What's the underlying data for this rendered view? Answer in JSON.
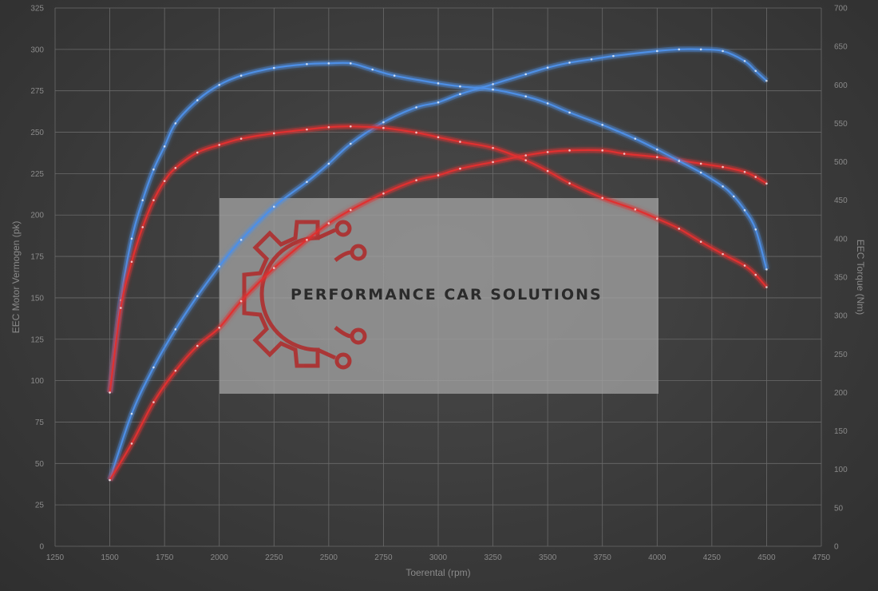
{
  "chart_data": {
    "type": "line",
    "xlabel": "Toerental (rpm)",
    "ylabel_left": "EEC Motor Vermogen (pk)",
    "ylabel_right": "EEC Torque (Nm)",
    "xlim": [
      1250,
      4750
    ],
    "ylim_left": [
      0,
      325
    ],
    "ylim_right": [
      0,
      700
    ],
    "x_ticks": [
      1250,
      1500,
      1750,
      2000,
      2250,
      2500,
      2750,
      3000,
      3250,
      3500,
      3750,
      4000,
      4250,
      4500,
      4750
    ],
    "y_ticks_left": [
      0,
      25,
      50,
      75,
      100,
      125,
      150,
      175,
      200,
      225,
      250,
      275,
      300,
      325
    ],
    "y_ticks_right": [
      0,
      50,
      100,
      150,
      200,
      250,
      300,
      350,
      400,
      450,
      500,
      550,
      600,
      650,
      700
    ],
    "grid": true,
    "series": [
      {
        "color": "#4d8fe6",
        "axis": "left",
        "points": [
          [
            1500,
            40
          ],
          [
            1600,
            80
          ],
          [
            1700,
            108
          ],
          [
            1800,
            131
          ],
          [
            1900,
            151
          ],
          [
            2000,
            169
          ],
          [
            2100,
            185
          ],
          [
            2250,
            205
          ],
          [
            2400,
            220
          ],
          [
            2500,
            231
          ],
          [
            2600,
            243
          ],
          [
            2750,
            256
          ],
          [
            2900,
            265
          ],
          [
            3000,
            268
          ],
          [
            3100,
            273
          ],
          [
            3250,
            279
          ],
          [
            3400,
            285
          ],
          [
            3500,
            289
          ],
          [
            3600,
            292
          ],
          [
            3700,
            294
          ],
          [
            3800,
            296
          ],
          [
            4000,
            299
          ],
          [
            4100,
            300
          ],
          [
            4200,
            300
          ],
          [
            4300,
            299
          ],
          [
            4400,
            293
          ],
          [
            4450,
            287
          ],
          [
            4500,
            281
          ]
        ]
      },
      {
        "color": "#e03030",
        "axis": "left",
        "points": [
          [
            1500,
            40
          ],
          [
            1600,
            62
          ],
          [
            1700,
            87
          ],
          [
            1800,
            106
          ],
          [
            1900,
            121
          ],
          [
            2000,
            132
          ],
          [
            2100,
            148
          ],
          [
            2250,
            168
          ],
          [
            2400,
            185
          ],
          [
            2500,
            195
          ],
          [
            2600,
            203
          ],
          [
            2750,
            213
          ],
          [
            2900,
            221
          ],
          [
            3000,
            224
          ],
          [
            3100,
            228
          ],
          [
            3250,
            232
          ],
          [
            3400,
            236
          ],
          [
            3500,
            238
          ],
          [
            3600,
            239
          ],
          [
            3750,
            239
          ],
          [
            3850,
            237
          ],
          [
            4000,
            235
          ],
          [
            4100,
            233
          ],
          [
            4200,
            231
          ],
          [
            4300,
            229
          ],
          [
            4400,
            226
          ],
          [
            4450,
            223
          ],
          [
            4500,
            219
          ]
        ]
      },
      {
        "color": "#4d8fe6",
        "axis": "right",
        "points": [
          [
            1500,
            200
          ],
          [
            1550,
            320
          ],
          [
            1600,
            400
          ],
          [
            1650,
            450
          ],
          [
            1700,
            490
          ],
          [
            1750,
            520
          ],
          [
            1800,
            550
          ],
          [
            1900,
            580
          ],
          [
            2000,
            600
          ],
          [
            2100,
            612
          ],
          [
            2250,
            622
          ],
          [
            2400,
            627
          ],
          [
            2500,
            628
          ],
          [
            2600,
            628
          ],
          [
            2700,
            620
          ],
          [
            2800,
            612
          ],
          [
            3000,
            602
          ],
          [
            3100,
            598
          ],
          [
            3250,
            594
          ],
          [
            3400,
            585
          ],
          [
            3500,
            576
          ],
          [
            3600,
            564
          ],
          [
            3750,
            548
          ],
          [
            3900,
            530
          ],
          [
            4000,
            516
          ],
          [
            4100,
            501
          ],
          [
            4200,
            486
          ],
          [
            4300,
            468
          ],
          [
            4350,
            455
          ],
          [
            4400,
            437
          ],
          [
            4450,
            412
          ],
          [
            4500,
            360
          ]
        ]
      },
      {
        "color": "#e03030",
        "axis": "right",
        "points": [
          [
            1500,
            200
          ],
          [
            1550,
            310
          ],
          [
            1600,
            370
          ],
          [
            1650,
            415
          ],
          [
            1700,
            450
          ],
          [
            1750,
            475
          ],
          [
            1800,
            492
          ],
          [
            1900,
            512
          ],
          [
            2000,
            522
          ],
          [
            2100,
            530
          ],
          [
            2250,
            537
          ],
          [
            2400,
            542
          ],
          [
            2500,
            545
          ],
          [
            2600,
            546
          ],
          [
            2750,
            544
          ],
          [
            2900,
            538
          ],
          [
            3000,
            532
          ],
          [
            3100,
            526
          ],
          [
            3250,
            518
          ],
          [
            3400,
            502
          ],
          [
            3500,
            488
          ],
          [
            3600,
            472
          ],
          [
            3750,
            453
          ],
          [
            3900,
            438
          ],
          [
            4000,
            426
          ],
          [
            4100,
            413
          ],
          [
            4200,
            396
          ],
          [
            4300,
            380
          ],
          [
            4400,
            365
          ],
          [
            4450,
            353
          ],
          [
            4500,
            337
          ]
        ]
      }
    ]
  },
  "watermark": {
    "text": "PERFORMANCE CAR SOLUTIONS",
    "logo_color": "#b02828",
    "box_color": "#a8a8a8"
  }
}
